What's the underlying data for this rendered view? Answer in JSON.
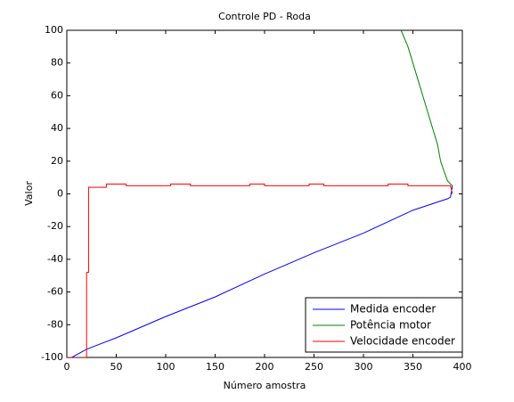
{
  "chart_data": {
    "type": "line",
    "title": "Controle PD - Roda",
    "xlabel": "Número amostra",
    "ylabel": "Valor",
    "xlim": [
      0,
      400
    ],
    "ylim": [
      -100,
      100
    ],
    "xticks": [
      0,
      50,
      100,
      150,
      200,
      250,
      300,
      350,
      400
    ],
    "yticks": [
      -100,
      -80,
      -60,
      -40,
      -20,
      0,
      20,
      40,
      60,
      80,
      100
    ],
    "legend": "lower-right",
    "grid": false,
    "series": [
      {
        "name": "Medida encoder",
        "color": "#0000ff",
        "x": [
          5,
          20,
          50,
          100,
          150,
          200,
          250,
          300,
          350,
          385,
          388,
          390
        ],
        "values": [
          -100,
          -95,
          -88,
          -75,
          -63,
          -49,
          -36,
          -24,
          -10,
          -3,
          -2,
          5
        ]
      },
      {
        "name": "Potência motor",
        "color": "#008000",
        "x": [
          338,
          345,
          350,
          355,
          360,
          365,
          370,
          375,
          378,
          382,
          385,
          388,
          390
        ],
        "values": [
          100,
          90,
          80,
          70,
          60,
          50,
          40,
          30,
          20,
          13,
          8,
          6,
          5
        ]
      },
      {
        "name": "Velocidade encoder",
        "color": "#ff0000",
        "x": [
          0,
          20,
          20,
          22,
          22,
          40,
          40,
          60,
          60,
          105,
          105,
          125,
          125,
          185,
          185,
          200,
          200,
          245,
          245,
          260,
          260,
          325,
          325,
          345,
          345,
          388,
          390
        ],
        "values": [
          -100,
          -100,
          -48,
          -48,
          4,
          4,
          6,
          6,
          5,
          5,
          6,
          6,
          5,
          5,
          6,
          6,
          5,
          5,
          6,
          6,
          5,
          5,
          6,
          6,
          5,
          5,
          0
        ]
      }
    ]
  }
}
